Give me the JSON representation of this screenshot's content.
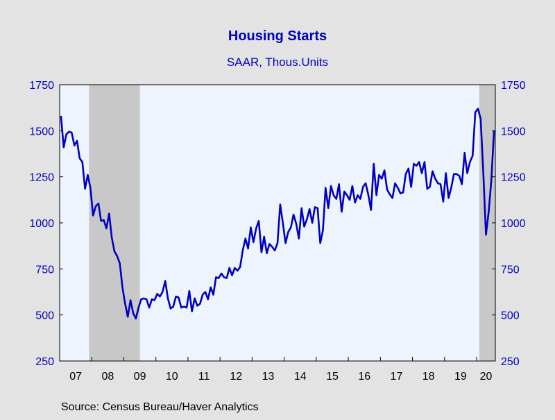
{
  "chart_data": {
    "type": "line",
    "title": "Housing Starts",
    "subtitle": "SAAR, Thous.Units",
    "source": "Source:  Census Bureau/Haver Analytics",
    "ylim": [
      250,
      1750
    ],
    "y_ticks": [
      250,
      500,
      750,
      1000,
      1250,
      1500,
      1750
    ],
    "y_tick_labels": [
      "250",
      "500",
      "750",
      "1000",
      "1250",
      "1500",
      "1750"
    ],
    "x_tick_labels": [
      "07",
      "08",
      "09",
      "10",
      "11",
      "12",
      "13",
      "14",
      "15",
      "16",
      "17",
      "18",
      "19",
      "20"
    ],
    "x_start": "2007-01",
    "x_end": "2020-07",
    "grid": false,
    "recessions": [
      {
        "start": "2007-12",
        "end": "2009-06"
      },
      {
        "start": "2020-02",
        "end": "2020-07"
      }
    ],
    "colors": {
      "line": "#0000c0",
      "text": "#0000c0",
      "plot_background": "#eef4fe",
      "recession_shade": "#c8c8c8",
      "page_background": "#e3e3e3"
    },
    "series": [
      {
        "x": [
          "2007-01",
          "2007-02",
          "2007-03",
          "2007-04",
          "2007-05",
          "2007-06",
          "2007-07",
          "2007-08",
          "2007-09",
          "2007-10",
          "2007-11",
          "2007-12",
          "2008-01",
          "2008-02",
          "2008-03",
          "2008-04",
          "2008-05",
          "2008-06",
          "2008-07",
          "2008-08",
          "2008-09",
          "2008-10",
          "2008-11",
          "2008-12",
          "2009-01",
          "2009-02",
          "2009-03",
          "2009-04",
          "2009-05",
          "2009-06",
          "2009-07",
          "2009-08",
          "2009-09",
          "2009-10",
          "2009-11",
          "2009-12",
          "2010-01",
          "2010-02",
          "2010-03",
          "2010-04",
          "2010-05",
          "2010-06",
          "2010-07",
          "2010-08",
          "2010-09",
          "2010-10",
          "2010-11",
          "2010-12",
          "2011-01",
          "2011-02",
          "2011-03",
          "2011-04",
          "2011-05",
          "2011-06",
          "2011-07",
          "2011-08",
          "2011-09",
          "2011-10",
          "2011-11",
          "2011-12",
          "2012-01",
          "2012-02",
          "2012-03",
          "2012-04",
          "2012-05",
          "2012-06",
          "2012-07",
          "2012-08",
          "2012-09",
          "2012-10",
          "2012-11",
          "2012-12",
          "2013-01",
          "2013-02",
          "2013-03",
          "2013-04",
          "2013-05",
          "2013-06",
          "2013-07",
          "2013-08",
          "2013-09",
          "2013-10",
          "2013-11",
          "2013-12",
          "2014-01",
          "2014-02",
          "2014-03",
          "2014-04",
          "2014-05",
          "2014-06",
          "2014-07",
          "2014-08",
          "2014-09",
          "2014-10",
          "2014-11",
          "2014-12",
          "2015-01",
          "2015-02",
          "2015-03",
          "2015-04",
          "2015-05",
          "2015-06",
          "2015-07",
          "2015-08",
          "2015-09",
          "2015-10",
          "2015-11",
          "2015-12",
          "2016-01",
          "2016-02",
          "2016-03",
          "2016-04",
          "2016-05",
          "2016-06",
          "2016-07",
          "2016-08",
          "2016-09",
          "2016-10",
          "2016-11",
          "2016-12",
          "2017-01",
          "2017-02",
          "2017-03",
          "2017-04",
          "2017-05",
          "2017-06",
          "2017-07",
          "2017-08",
          "2017-09",
          "2017-10",
          "2017-11",
          "2017-12",
          "2018-01",
          "2018-02",
          "2018-03",
          "2018-04",
          "2018-05",
          "2018-06",
          "2018-07",
          "2018-08",
          "2018-09",
          "2018-10",
          "2018-11",
          "2018-12",
          "2019-01",
          "2019-02",
          "2019-03",
          "2019-04",
          "2019-05",
          "2019-06",
          "2019-07",
          "2019-08",
          "2019-09",
          "2019-10",
          "2019-11",
          "2019-12",
          "2020-01",
          "2020-02",
          "2020-03",
          "2020-04",
          "2020-05",
          "2020-06",
          "2020-07"
        ],
        "values": [
          1580,
          1410,
          1480,
          1495,
          1490,
          1420,
          1445,
          1350,
          1330,
          1185,
          1260,
          1190,
          1040,
          1090,
          1105,
          1010,
          1015,
          970,
          1050,
          920,
          845,
          820,
          780,
          650,
          560,
          490,
          580,
          510,
          480,
          540,
          585,
          590,
          585,
          540,
          585,
          580,
          615,
          600,
          625,
          685,
          590,
          535,
          545,
          600,
          595,
          540,
          545,
          540,
          630,
          520,
          590,
          550,
          560,
          610,
          625,
          585,
          650,
          610,
          705,
          700,
          725,
          705,
          700,
          755,
          715,
          755,
          740,
          760,
          850,
          915,
          860,
          975,
          895,
          970,
          1010,
          840,
          925,
          835,
          885,
          870,
          850,
          890,
          1100,
          1000,
          890,
          950,
          975,
          1045,
          995,
          915,
          1080,
          980,
          1020,
          1075,
          1000,
          1085,
          1080,
          890,
          960,
          1190,
          1080,
          1200,
          1150,
          1130,
          1210,
          1060,
          1170,
          1150,
          1125,
          1200,
          1110,
          1150,
          1130,
          1195,
          1215,
          1150,
          1070,
          1320,
          1150,
          1260,
          1240,
          1285,
          1180,
          1155,
          1135,
          1215,
          1190,
          1160,
          1165,
          1265,
          1295,
          1195,
          1320,
          1310,
          1330,
          1270,
          1330,
          1185,
          1195,
          1280,
          1240,
          1215,
          1210,
          1115,
          1270,
          1135,
          1190,
          1265,
          1265,
          1255,
          1210,
          1380,
          1270,
          1330,
          1365,
          1600,
          1620,
          1565,
          1270,
          935,
          1060,
          1230,
          1500
        ]
      }
    ]
  }
}
